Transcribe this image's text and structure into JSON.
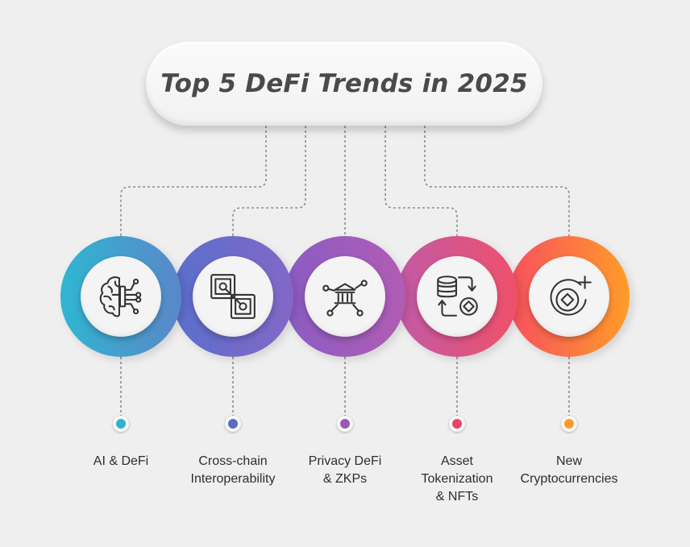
{
  "title": "Top 5 DeFi Trends in 2025",
  "trends": [
    {
      "label_lines": [
        "AI & DeFi"
      ],
      "icon": "ai-brain-circuit-icon",
      "gradient": [
        "#2fb6d2",
        "#5a87c9"
      ],
      "dot_color": "#2fb2cf"
    },
    {
      "label_lines": [
        "Cross-chain",
        "Interoperability"
      ],
      "icon": "cross-chain-link-icon",
      "gradient": [
        "#5a6fcc",
        "#8367c7"
      ],
      "dot_color": "#5b6bc4"
    },
    {
      "label_lines": [
        "Privacy DeFi",
        "& ZKPs"
      ],
      "icon": "bank-network-icon",
      "gradient": [
        "#8a5cc4",
        "#b15cb3"
      ],
      "dot_color": "#9b59b6"
    },
    {
      "label_lines": [
        "Asset",
        "Tokenization",
        "& NFTs"
      ],
      "icon": "database-token-exchange-icon",
      "gradient": [
        "#c25aa6",
        "#f0506a"
      ],
      "dot_color": "#e6465f"
    },
    {
      "label_lines": [
        "New",
        "Cryptocurrencies"
      ],
      "icon": "new-coin-plus-icon",
      "gradient": [
        "#f7505f",
        "#ff9c28"
      ],
      "dot_color": "#fb9b2a"
    }
  ]
}
